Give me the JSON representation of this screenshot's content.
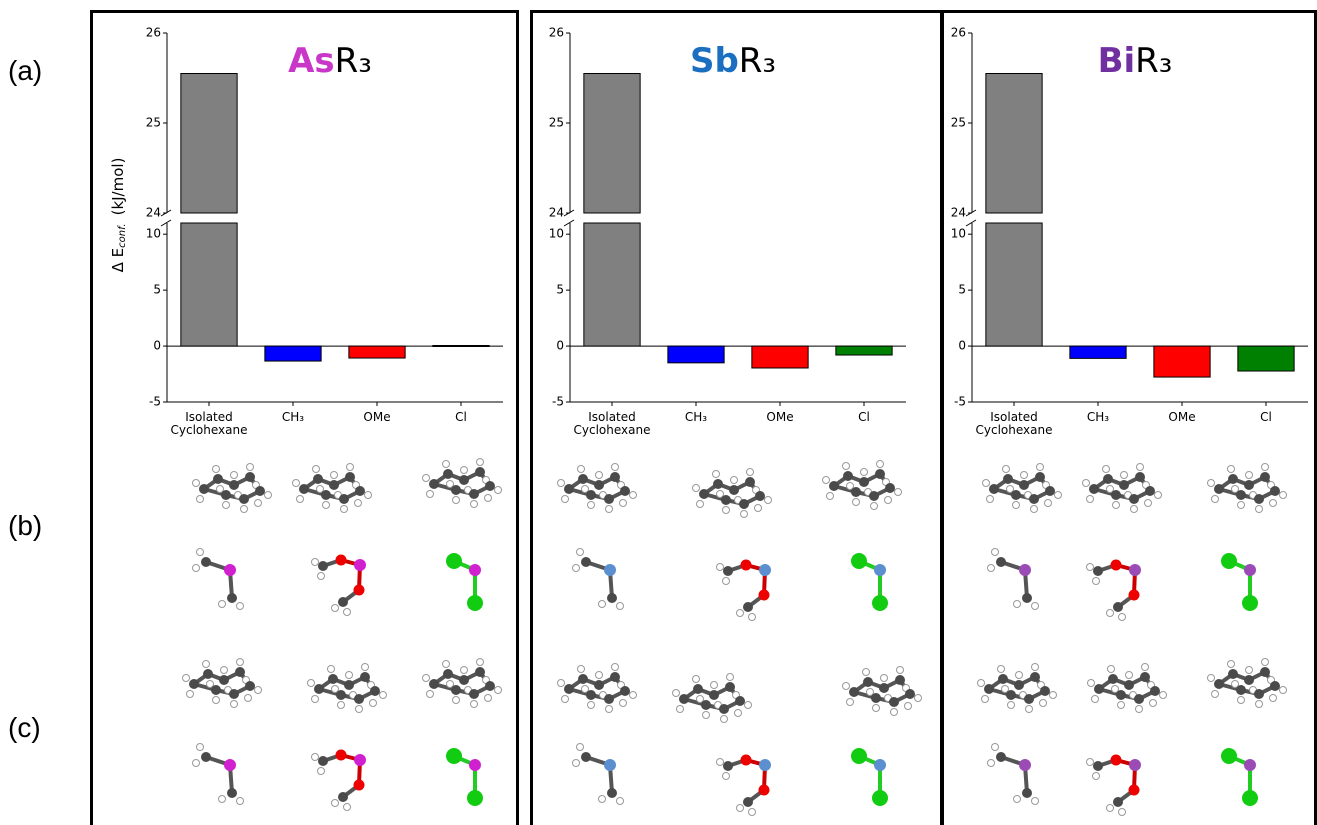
{
  "row_labels": [
    "(a)",
    "(b)",
    "(c)"
  ],
  "chart_data": [
    {
      "type": "bar",
      "title_parts": [
        {
          "text": "As",
          "color": "#c837c8"
        },
        {
          "text": "R₃",
          "color": "#000000"
        }
      ],
      "y_label": "Δ E",
      "y_label_subscript": "conf.",
      "y_label_units": "(kJ/mol)",
      "categories": [
        "Isolated Cyclohexane",
        "CH₃",
        "OMe",
        "Cl"
      ],
      "values": [
        25.55,
        -1.34,
        -1.07,
        0.05
      ],
      "colors": [
        "#808080",
        "#0000ff",
        "#ff0000",
        "#008000"
      ],
      "y_segments": [
        {
          "ylim": [
            -5,
            11
          ],
          "yticks": [
            -5,
            0,
            5,
            10
          ]
        },
        {
          "ylim": [
            24,
            26
          ],
          "yticks": [
            24,
            25,
            26
          ]
        }
      ]
    },
    {
      "type": "bar",
      "title_parts": [
        {
          "text": "Sb",
          "color": "#1a6fc0"
        },
        {
          "text": "R₃",
          "color": "#000000"
        }
      ],
      "categories": [
        "Isolated Cyclohexane",
        "CH₃",
        "OMe",
        "Cl"
      ],
      "values": [
        25.55,
        -1.5,
        -1.96,
        -0.8
      ],
      "colors": [
        "#808080",
        "#0000ff",
        "#ff0000",
        "#008000"
      ],
      "y_segments": [
        {
          "ylim": [
            -5,
            11
          ],
          "yticks": [
            -5,
            0,
            5,
            10
          ]
        },
        {
          "ylim": [
            24,
            26
          ],
          "yticks": [
            24,
            25,
            26
          ]
        }
      ]
    },
    {
      "type": "bar",
      "title_parts": [
        {
          "text": "Bi",
          "color": "#7030a0"
        },
        {
          "text": "R₃",
          "color": "#000000"
        }
      ],
      "categories": [
        "Isolated Cyclohexane",
        "CH₃",
        "OMe",
        "Cl"
      ],
      "values": [
        25.55,
        -1.1,
        -2.77,
        -2.23
      ],
      "colors": [
        "#808080",
        "#0000ff",
        "#ff0000",
        "#008000"
      ],
      "y_segments": [
        {
          "ylim": [
            -5,
            11
          ],
          "yticks": [
            -5,
            0,
            5,
            10
          ]
        },
        {
          "ylim": [
            24,
            26
          ],
          "yticks": [
            24,
            25,
            26
          ]
        }
      ]
    }
  ]
}
